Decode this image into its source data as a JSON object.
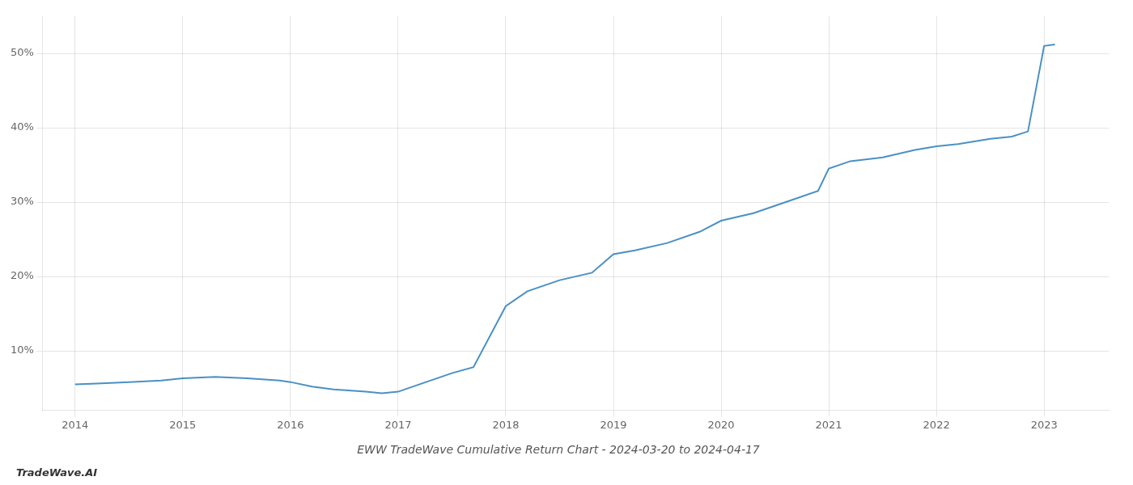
{
  "chart_data": {
    "type": "line",
    "title": "EWW TradeWave Cumulative Return Chart - 2024-03-20 to 2024-04-17",
    "annotations": [
      "TradeWave.AI"
    ],
    "color": "#4a90c4",
    "x": [
      2014.0,
      2014.2,
      2014.5,
      2014.8,
      2015.0,
      2015.3,
      2015.6,
      2015.9,
      2016.0,
      2016.2,
      2016.4,
      2016.7,
      2016.85,
      2017.0,
      2017.2,
      2017.5,
      2017.7,
      2018.0,
      2018.2,
      2018.5,
      2018.8,
      2019.0,
      2019.2,
      2019.5,
      2019.8,
      2020.0,
      2020.3,
      2020.6,
      2020.9,
      2021.0,
      2021.2,
      2021.5,
      2021.8,
      2022.0,
      2022.2,
      2022.5,
      2022.7,
      2022.85,
      2023.0,
      2023.1
    ],
    "values": [
      5.5,
      5.6,
      5.8,
      6.0,
      6.3,
      6.5,
      6.3,
      6.0,
      5.8,
      5.2,
      4.8,
      4.5,
      4.3,
      4.5,
      5.5,
      7.0,
      7.8,
      16.0,
      18.0,
      19.5,
      20.5,
      23.0,
      23.5,
      24.5,
      26.0,
      27.5,
      28.5,
      30.0,
      31.5,
      34.5,
      35.5,
      36.0,
      37.0,
      37.5,
      37.8,
      38.5,
      38.8,
      39.5,
      51.0,
      51.2
    ],
    "xlim": [
      2013.7,
      2023.6
    ],
    "ylim": [
      2,
      55
    ],
    "xticks": [
      2014,
      2015,
      2016,
      2017,
      2018,
      2019,
      2020,
      2021,
      2022,
      2023
    ],
    "yticks": [
      {
        "value": 10,
        "label": "10%"
      },
      {
        "value": 20,
        "label": "20%"
      },
      {
        "value": 30,
        "label": "30%"
      },
      {
        "value": 40,
        "label": "40%"
      },
      {
        "value": 50,
        "label": "50%"
      }
    ],
    "grid": true
  }
}
